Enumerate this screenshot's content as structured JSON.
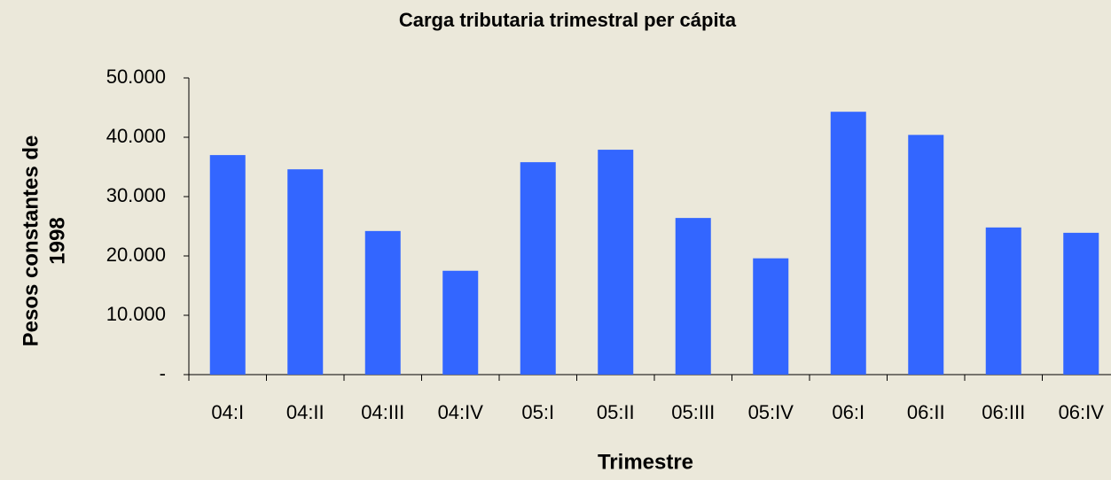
{
  "chart_data": {
    "type": "bar",
    "title": "Carga tributaria trimestral per cápita",
    "xlabel": "Trimestre",
    "ylabel": [
      "Pesos constantes de",
      "1998"
    ],
    "categories": [
      "04:I",
      "04:II",
      "04:III",
      "04:IV",
      "05:I",
      "05:II",
      "05:III",
      "05:IV",
      "06:I",
      "06:II",
      "06:III",
      "06:IV"
    ],
    "values": [
      37000,
      34600,
      24200,
      17500,
      35800,
      37900,
      26400,
      19600,
      44300,
      40400,
      24800,
      23900
    ],
    "color": "#3366ff",
    "ylim": [
      0,
      50000
    ],
    "yticks": [
      {
        "value": 0,
        "label": "-"
      },
      {
        "value": 10000,
        "label": "10.000"
      },
      {
        "value": 20000,
        "label": "20.000"
      },
      {
        "value": 30000,
        "label": "30.000"
      },
      {
        "value": 40000,
        "label": "40.000"
      },
      {
        "value": 50000,
        "label": "50.000"
      }
    ],
    "grid": false
  }
}
